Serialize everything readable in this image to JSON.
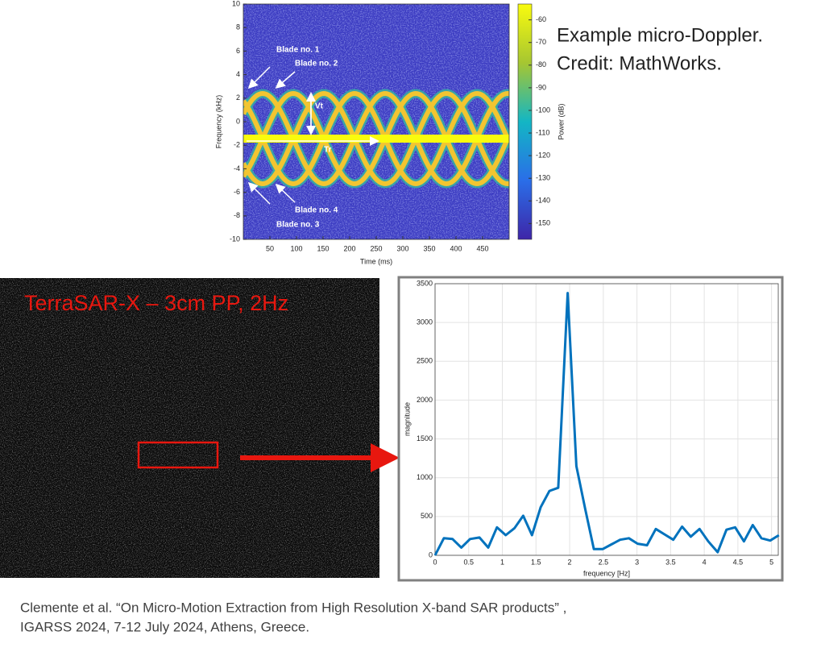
{
  "chart_data": [
    {
      "type": "spectrogram",
      "x_label": "Time (ms)",
      "y_label": "Frequency (kHz)",
      "xlim": [
        0,
        500
      ],
      "xticks": [
        50,
        100,
        150,
        200,
        250,
        300,
        350,
        400,
        450
      ],
      "ylim": [
        -10,
        10
      ],
      "yticks": [
        -10,
        -8,
        -6,
        -4,
        -2,
        0,
        2,
        4,
        6,
        8,
        10
      ],
      "colorbar": {
        "label": "Power (dB)",
        "lim": [
          -157,
          -53
        ],
        "ticks": [
          -60,
          -70,
          -80,
          -90,
          -100,
          -110,
          -120,
          -130,
          -140,
          -150
        ]
      },
      "annotations": [
        "Blade no. 1",
        "Blade no. 2",
        "Blade no. 4",
        "Blade no. 3",
        "Vt",
        "Tr"
      ]
    },
    {
      "type": "line",
      "x_label": "frequency [Hz]",
      "y_label": "magnitude",
      "color": "#0072bd",
      "grid": true,
      "xlim": [
        0,
        5.1
      ],
      "xticks": [
        0,
        0.5,
        1,
        1.5,
        2,
        2.5,
        3,
        3.5,
        4,
        4.5,
        5
      ],
      "ylim": [
        0,
        3500
      ],
      "yticks": [
        0,
        500,
        1000,
        1500,
        2000,
        2500,
        3000,
        3500
      ],
      "x": [
        0,
        0.13,
        0.26,
        0.39,
        0.52,
        0.66,
        0.79,
        0.92,
        1.05,
        1.18,
        1.31,
        1.44,
        1.57,
        1.7,
        1.83,
        1.97,
        2.1,
        2.23,
        2.36,
        2.49,
        2.62,
        2.75,
        2.88,
        3.01,
        3.15,
        3.28,
        3.41,
        3.54,
        3.67,
        3.8,
        3.93,
        4.06,
        4.2,
        4.33,
        4.46,
        4.59,
        4.72,
        4.85,
        4.98,
        5.11
      ],
      "values": [
        0,
        220,
        210,
        100,
        210,
        230,
        100,
        360,
        260,
        350,
        510,
        260,
        620,
        830,
        870,
        3380,
        1150,
        600,
        80,
        80,
        140,
        200,
        220,
        150,
        130,
        340,
        270,
        200,
        370,
        240,
        340,
        180,
        40,
        330,
        360,
        180,
        390,
        220,
        190,
        260
      ]
    }
  ],
  "credit": [
    "Example micro-Doppler.",
    "Credit: MathWorks."
  ],
  "sar_label": "TerraSAR-X – 3cm PP, 2Hz",
  "citation": [
    "Clemente et al. “On Micro-Motion Extraction from High Resolution X-band SAR products” ,",
    "IGARSS 2024, 7-12 July 2024, Athens, Greece."
  ]
}
